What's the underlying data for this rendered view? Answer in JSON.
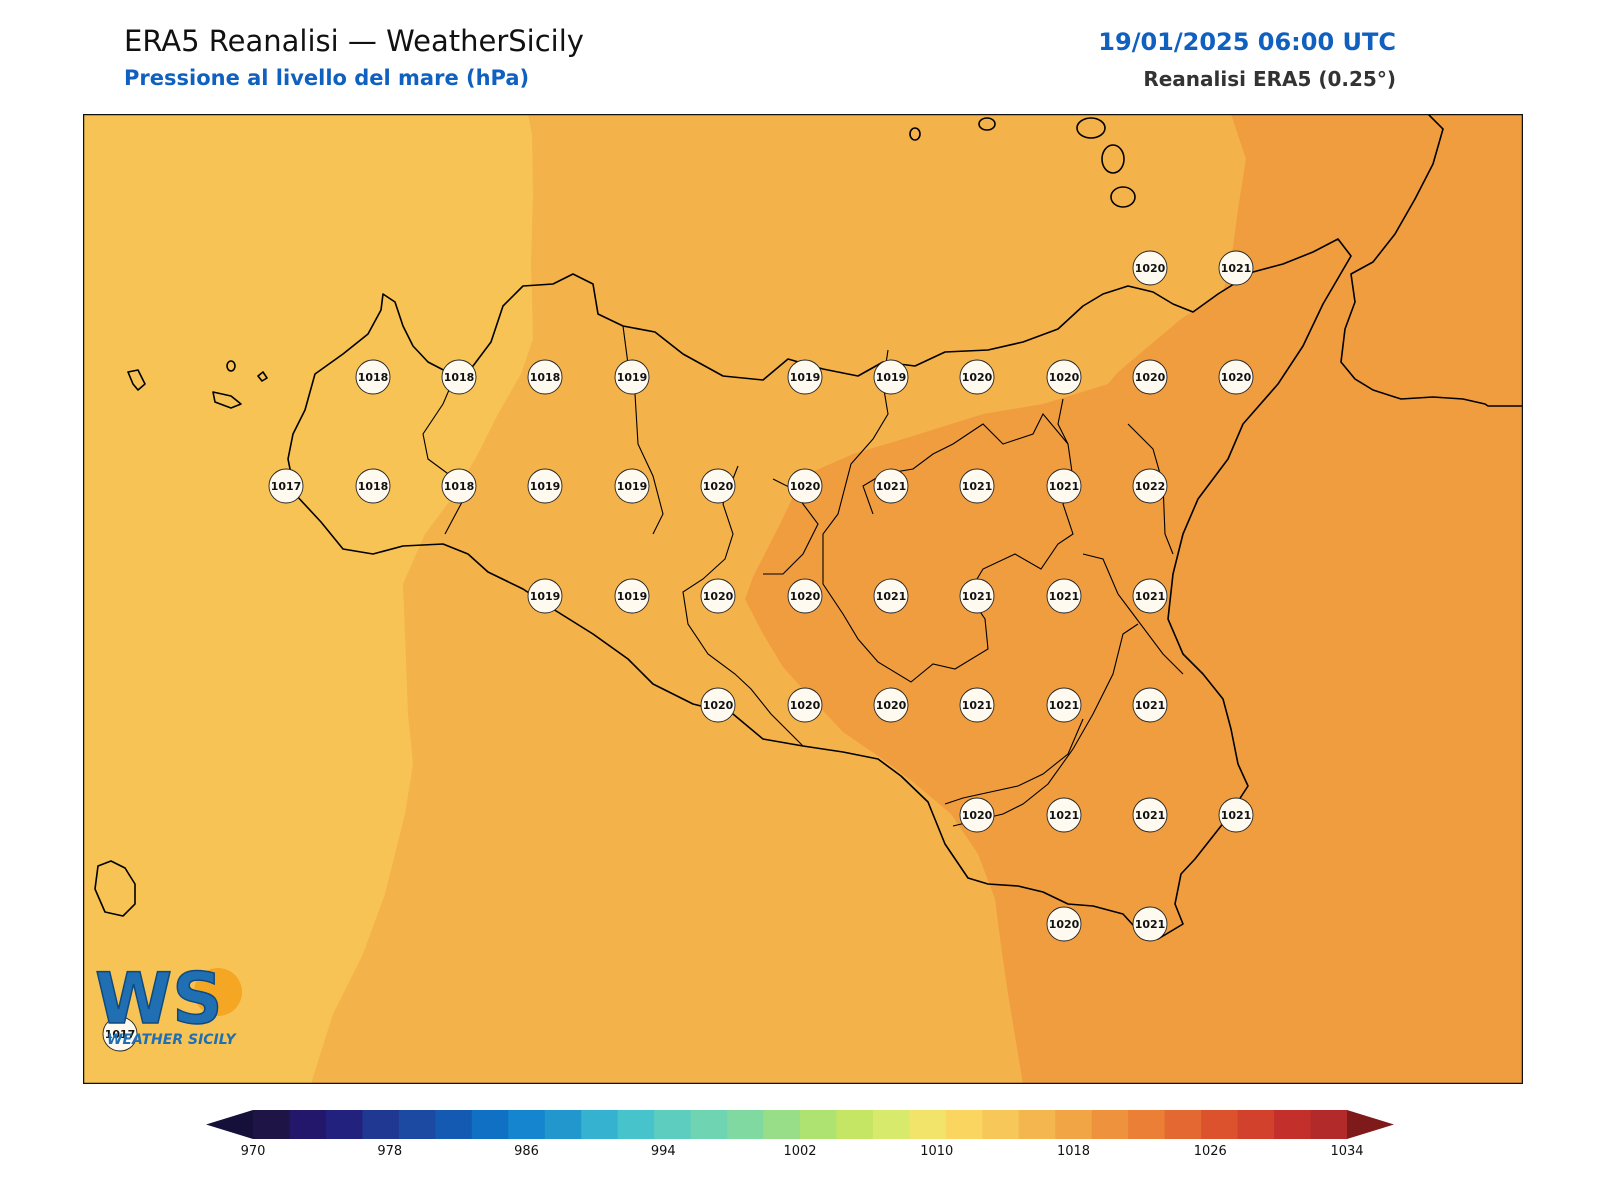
{
  "header": {
    "title": "ERA5 Reanalisi — WeatherSicily",
    "subtitle": "Pressione al livello del mare (hPa)",
    "datetime": "19/01/2025 06:00 UTC",
    "source": "Reanalisi ERA5 (0.25°)"
  },
  "logo": {
    "letters": "WS",
    "text": "WEATHER SICILY"
  },
  "colors": {
    "fill_1017": "#f6c354",
    "fill_1018": "#f4b24a",
    "fill_1020": "#f09d40",
    "coast": "#000000"
  },
  "station_values": [
    {
      "id": "r1c1",
      "value": "1020"
    },
    {
      "id": "r1c2",
      "value": "1021"
    },
    {
      "id": "r2c1",
      "value": "1018"
    },
    {
      "id": "r2c2",
      "value": "1018"
    },
    {
      "id": "r2c3",
      "value": "1018"
    },
    {
      "id": "r2c4",
      "value": "1019"
    },
    {
      "id": "r2c5",
      "value": "1019"
    },
    {
      "id": "r2c6",
      "value": "1019"
    },
    {
      "id": "r2c7",
      "value": "1020"
    },
    {
      "id": "r2c8",
      "value": "1020"
    },
    {
      "id": "r2c9",
      "value": "1020"
    },
    {
      "id": "r2c10",
      "value": "1020"
    },
    {
      "id": "r3c1",
      "value": "1017"
    },
    {
      "id": "r3c2",
      "value": "1018"
    },
    {
      "id": "r3c3",
      "value": "1018"
    },
    {
      "id": "r3c4",
      "value": "1019"
    },
    {
      "id": "r3c5",
      "value": "1019"
    },
    {
      "id": "r3c6",
      "value": "1020"
    },
    {
      "id": "r3c7",
      "value": "1020"
    },
    {
      "id": "r3c8",
      "value": "1021"
    },
    {
      "id": "r3c9",
      "value": "1021"
    },
    {
      "id": "r3c10",
      "value": "1021"
    },
    {
      "id": "r3c11",
      "value": "1022"
    },
    {
      "id": "r4c1",
      "value": "1019"
    },
    {
      "id": "r4c2",
      "value": "1019"
    },
    {
      "id": "r4c3",
      "value": "1020"
    },
    {
      "id": "r4c4",
      "value": "1020"
    },
    {
      "id": "r4c5",
      "value": "1021"
    },
    {
      "id": "r4c6",
      "value": "1021"
    },
    {
      "id": "r4c7",
      "value": "1021"
    },
    {
      "id": "r4c8",
      "value": "1021"
    },
    {
      "id": "r5c1",
      "value": "1020"
    },
    {
      "id": "r5c2",
      "value": "1020"
    },
    {
      "id": "r5c3",
      "value": "1020"
    },
    {
      "id": "r5c4",
      "value": "1021"
    },
    {
      "id": "r5c5",
      "value": "1021"
    },
    {
      "id": "r5c6",
      "value": "1021"
    },
    {
      "id": "r6c1",
      "value": "1020"
    },
    {
      "id": "r6c2",
      "value": "1021"
    },
    {
      "id": "r6c3",
      "value": "1021"
    },
    {
      "id": "r6c4",
      "value": "1021"
    },
    {
      "id": "r7c1",
      "value": "1020"
    },
    {
      "id": "r7c2",
      "value": "1021"
    },
    {
      "id": "r8c1",
      "value": "1017"
    }
  ],
  "colorbar": {
    "min": 970,
    "max": 1034,
    "step": 2,
    "tick_labels": [
      "970",
      "978",
      "986",
      "994",
      "1002",
      "1010",
      "1018",
      "1026",
      "1034"
    ],
    "colors": [
      "#1e1446",
      "#22176a",
      "#23217e",
      "#203891",
      "#1c4aa2",
      "#1459b2",
      "#0f70c4",
      "#1485ce",
      "#2197ce",
      "#34b2cf",
      "#46c3cb",
      "#5dcdc0",
      "#6ed4b2",
      "#80d9a0",
      "#98de88",
      "#aee371",
      "#c5e665",
      "#d8ea6c",
      "#f2e36a",
      "#fad660",
      "#f7c759",
      "#f4b64f",
      "#f1a545",
      "#ee923e",
      "#eb7f36",
      "#e46831",
      "#dc522d",
      "#d2412b",
      "#c3302b",
      "#b22a29"
    ],
    "extend_low_color": "#15103a",
    "extend_high_color": "#7e1a1a"
  }
}
